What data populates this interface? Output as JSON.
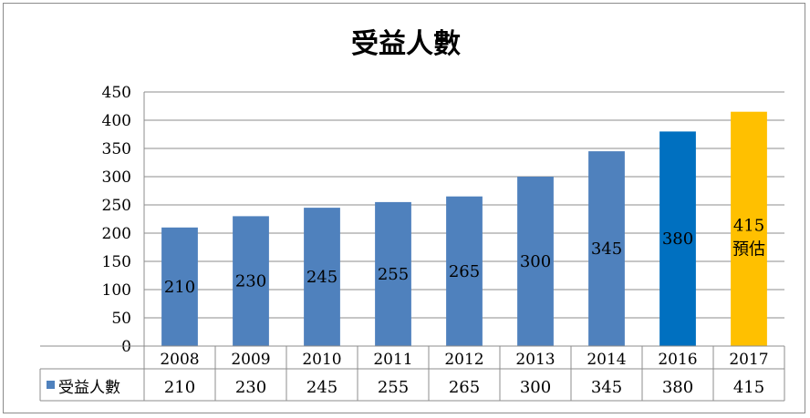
{
  "chart_data": {
    "type": "bar",
    "title": "受益人數",
    "categories": [
      "2008",
      "2009",
      "2010",
      "2011",
      "2012",
      "2013",
      "2014",
      "2016",
      "2017"
    ],
    "series": [
      {
        "name": "受益人數",
        "values": [
          210,
          230,
          245,
          255,
          265,
          300,
          345,
          380,
          415
        ],
        "color": "#4f81bd"
      }
    ],
    "bar_colors": [
      "#4f81bd",
      "#4f81bd",
      "#4f81bd",
      "#4f81bd",
      "#4f81bd",
      "#4f81bd",
      "#4f81bd",
      "#0070c0",
      "#ffc000"
    ],
    "data_labels": [
      "210",
      "230",
      "245",
      "255",
      "265",
      "300",
      "345",
      "380",
      "415"
    ],
    "annotations": [
      {
        "category": "2017",
        "text": "預估"
      }
    ],
    "yticks": [
      0,
      50,
      100,
      150,
      200,
      250,
      300,
      350,
      400,
      450
    ],
    "ylim": [
      0,
      450
    ],
    "grid": true,
    "legend": "data-table-left",
    "data_table": true
  }
}
